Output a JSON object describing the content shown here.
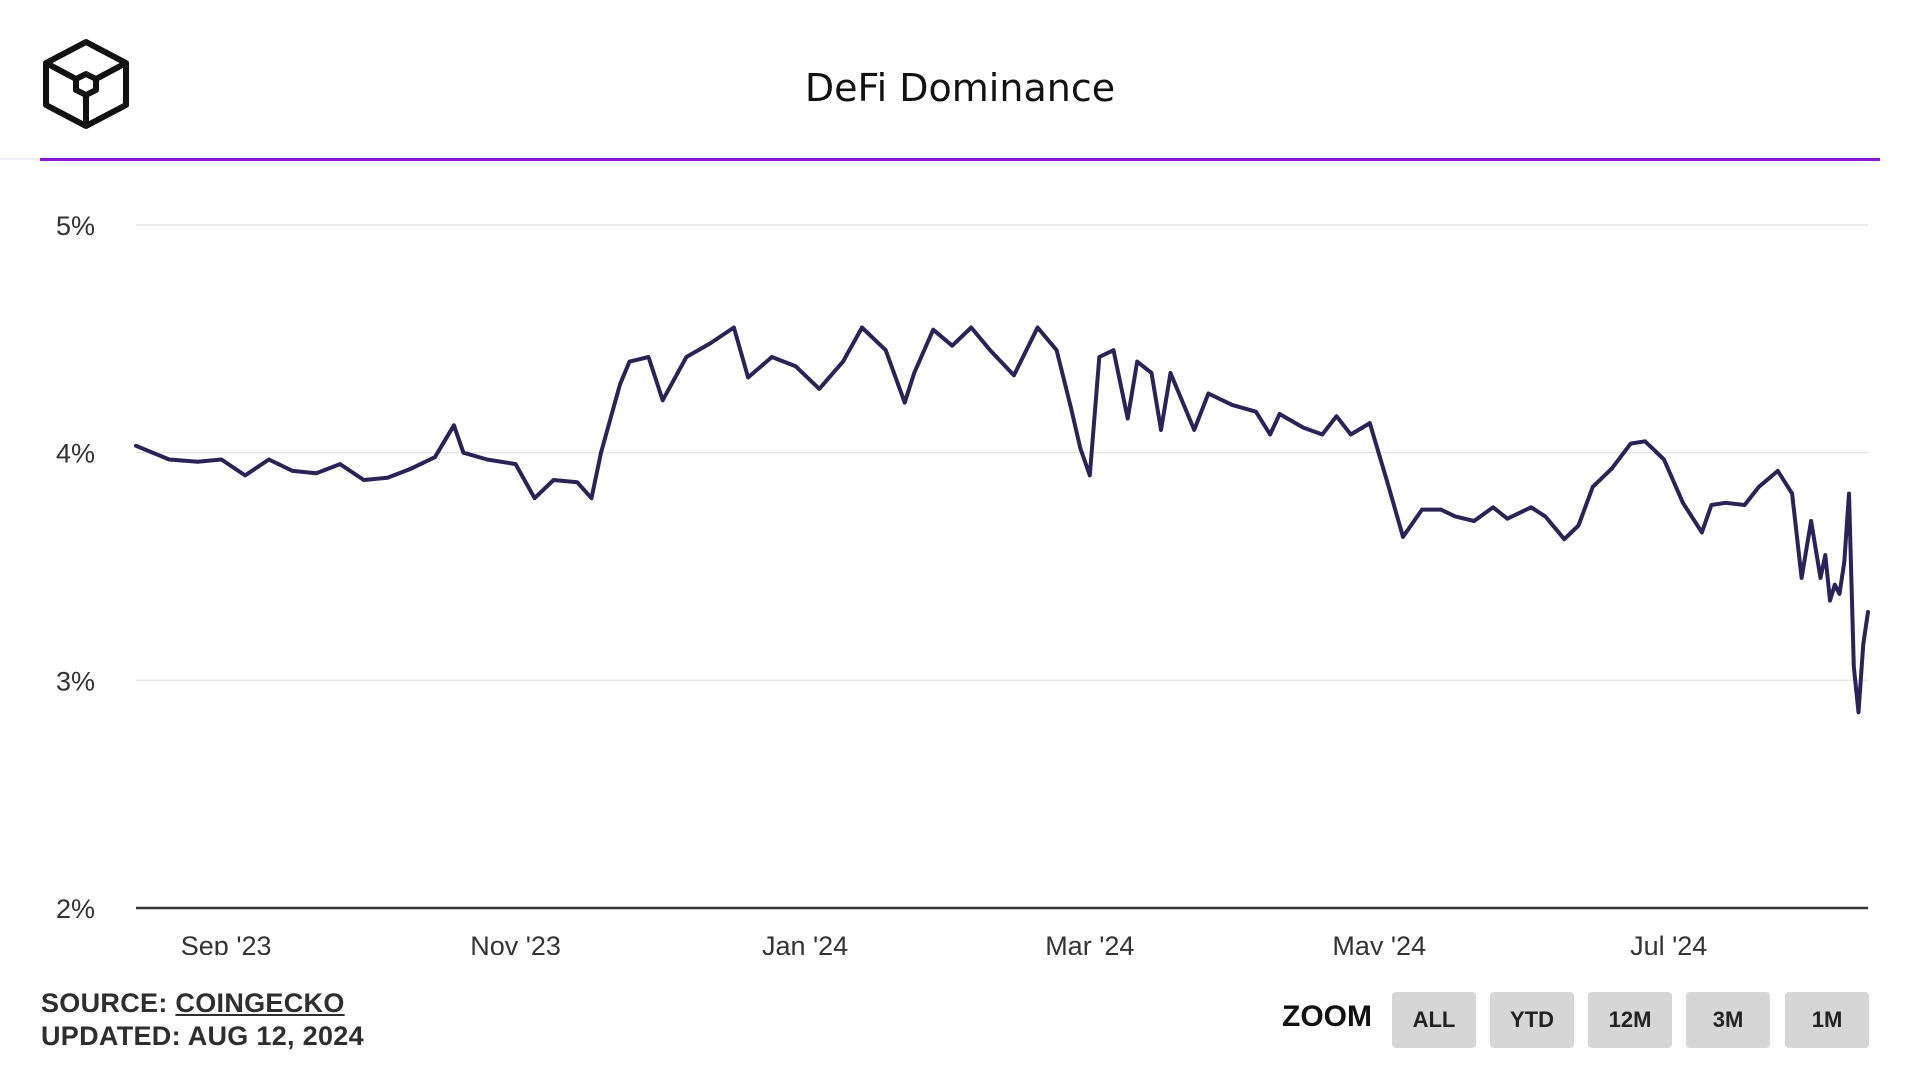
{
  "title": "DeFi Dominance",
  "logo_icon": "cube-icon",
  "colors": {
    "accent": "#8b17d8",
    "line": "#2a2356",
    "grid": "#e6e6e6",
    "button_bg": "#d6d6d6"
  },
  "footer": {
    "source_prefix": "SOURCE: ",
    "source_name": "COINGECKO",
    "updated": "UPDATED: AUG 12, 2024"
  },
  "zoom": {
    "label": "ZOOM",
    "buttons": [
      "ALL",
      "YTD",
      "12M",
      "3M",
      "1M"
    ]
  },
  "chart_data": {
    "type": "line",
    "title": "DeFi Dominance",
    "xlabel": "",
    "ylabel": "",
    "ylim": [
      2,
      5
    ],
    "y_ticks": [
      "2%",
      "3%",
      "4%",
      "5%"
    ],
    "y_tick_values": [
      2,
      3,
      4,
      5
    ],
    "x_range": [
      "2023-08-13",
      "2024-08-12"
    ],
    "x_ticks": [
      {
        "label": "Sep '23",
        "date": "2023-09-01"
      },
      {
        "label": "Nov '23",
        "date": "2023-11-01"
      },
      {
        "label": "Jan '24",
        "date": "2024-01-01"
      },
      {
        "label": "Mar '24",
        "date": "2024-03-01"
      },
      {
        "label": "May '24",
        "date": "2024-05-01"
      },
      {
        "label": "Jul '24",
        "date": "2024-07-01"
      }
    ],
    "grid": true,
    "legend": "none",
    "series": [
      {
        "points": [
          [
            "2023-08-13",
            4.03
          ],
          [
            "2023-08-20",
            3.97
          ],
          [
            "2023-08-26",
            3.96
          ],
          [
            "2023-08-31",
            3.97
          ],
          [
            "2023-09-05",
            3.9
          ],
          [
            "2023-09-10",
            3.97
          ],
          [
            "2023-09-15",
            3.92
          ],
          [
            "2023-09-20",
            3.91
          ],
          [
            "2023-09-25",
            3.95
          ],
          [
            "2023-09-30",
            3.88
          ],
          [
            "2023-10-05",
            3.89
          ],
          [
            "2023-10-10",
            3.93
          ],
          [
            "2023-10-15",
            3.98
          ],
          [
            "2023-10-19",
            4.12
          ],
          [
            "2023-10-21",
            4.0
          ],
          [
            "2023-10-26",
            3.97
          ],
          [
            "2023-11-01",
            3.95
          ],
          [
            "2023-11-05",
            3.8
          ],
          [
            "2023-11-09",
            3.88
          ],
          [
            "2023-11-14",
            3.87
          ],
          [
            "2023-11-17",
            3.8
          ],
          [
            "2023-11-19",
            4.0
          ],
          [
            "2023-11-23",
            4.3
          ],
          [
            "2023-11-25",
            4.4
          ],
          [
            "2023-11-29",
            4.42
          ],
          [
            "2023-12-02",
            4.23
          ],
          [
            "2023-12-07",
            4.42
          ],
          [
            "2023-12-12",
            4.48
          ],
          [
            "2023-12-17",
            4.55
          ],
          [
            "2023-12-20",
            4.33
          ],
          [
            "2023-12-25",
            4.42
          ],
          [
            "2023-12-30",
            4.38
          ],
          [
            "2024-01-04",
            4.28
          ],
          [
            "2024-01-09",
            4.4
          ],
          [
            "2024-01-13",
            4.55
          ],
          [
            "2024-01-18",
            4.45
          ],
          [
            "2024-01-22",
            4.22
          ],
          [
            "2024-01-24",
            4.35
          ],
          [
            "2024-01-28",
            4.54
          ],
          [
            "2024-02-01",
            4.47
          ],
          [
            "2024-02-05",
            4.55
          ],
          [
            "2024-02-09",
            4.45
          ],
          [
            "2024-02-14",
            4.34
          ],
          [
            "2024-02-19",
            4.55
          ],
          [
            "2024-02-23",
            4.45
          ],
          [
            "2024-02-26",
            4.2
          ],
          [
            "2024-02-28",
            4.02
          ],
          [
            "2024-03-01",
            3.9
          ],
          [
            "2024-03-03",
            4.42
          ],
          [
            "2024-03-06",
            4.45
          ],
          [
            "2024-03-09",
            4.15
          ],
          [
            "2024-03-11",
            4.4
          ],
          [
            "2024-03-14",
            4.35
          ],
          [
            "2024-03-16",
            4.1
          ],
          [
            "2024-03-18",
            4.35
          ],
          [
            "2024-03-23",
            4.1
          ],
          [
            "2024-03-26",
            4.26
          ],
          [
            "2024-03-31",
            4.21
          ],
          [
            "2024-04-05",
            4.18
          ],
          [
            "2024-04-08",
            4.08
          ],
          [
            "2024-04-10",
            4.17
          ],
          [
            "2024-04-15",
            4.11
          ],
          [
            "2024-04-19",
            4.08
          ],
          [
            "2024-04-22",
            4.16
          ],
          [
            "2024-04-25",
            4.08
          ],
          [
            "2024-04-29",
            4.13
          ],
          [
            "2024-05-03",
            3.85
          ],
          [
            "2024-05-06",
            3.63
          ],
          [
            "2024-05-10",
            3.75
          ],
          [
            "2024-05-14",
            3.75
          ],
          [
            "2024-05-17",
            3.72
          ],
          [
            "2024-05-21",
            3.7
          ],
          [
            "2024-05-25",
            3.76
          ],
          [
            "2024-05-28",
            3.71
          ],
          [
            "2024-06-02",
            3.76
          ],
          [
            "2024-06-05",
            3.72
          ],
          [
            "2024-06-09",
            3.62
          ],
          [
            "2024-06-12",
            3.68
          ],
          [
            "2024-06-15",
            3.85
          ],
          [
            "2024-06-19",
            3.93
          ],
          [
            "2024-06-23",
            4.04
          ],
          [
            "2024-06-26",
            4.05
          ],
          [
            "2024-06-30",
            3.97
          ],
          [
            "2024-07-04",
            3.78
          ],
          [
            "2024-07-08",
            3.65
          ],
          [
            "2024-07-10",
            3.77
          ],
          [
            "2024-07-13",
            3.78
          ],
          [
            "2024-07-17",
            3.77
          ],
          [
            "2024-07-20",
            3.85
          ],
          [
            "2024-07-24",
            3.92
          ],
          [
            "2024-07-27",
            3.82
          ],
          [
            "2024-07-29",
            3.45
          ],
          [
            "2024-07-31",
            3.7
          ],
          [
            "2024-08-02",
            3.45
          ],
          [
            "2024-08-03",
            3.55
          ],
          [
            "2024-08-04",
            3.35
          ],
          [
            "2024-08-05",
            3.42
          ],
          [
            "2024-08-06",
            3.38
          ],
          [
            "2024-08-07",
            3.52
          ],
          [
            "2024-08-08",
            3.82
          ],
          [
            "2024-08-09",
            3.06
          ],
          [
            "2024-08-10",
            2.86
          ],
          [
            "2024-08-11",
            3.16
          ],
          [
            "2024-08-12",
            3.3
          ]
        ]
      }
    ]
  }
}
